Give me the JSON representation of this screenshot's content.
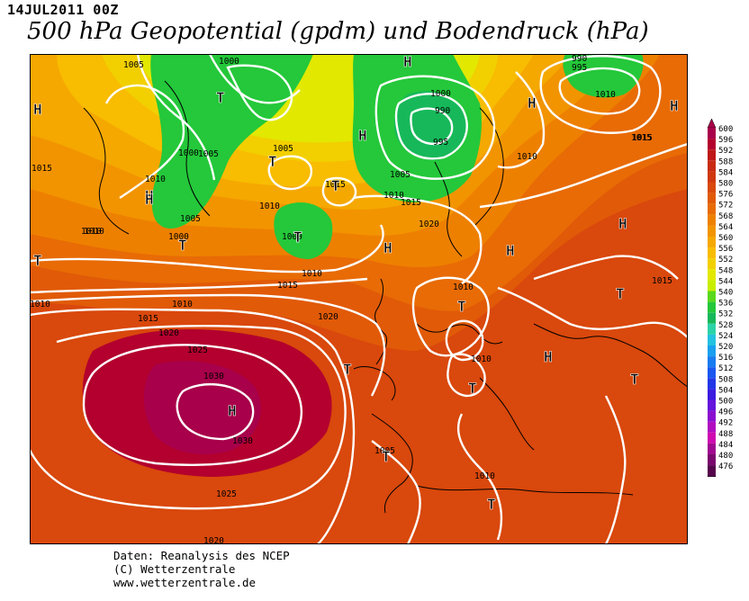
{
  "header": {
    "date": "14JUL2011 00Z",
    "title": "500 hPa Geopotential (gpdm) und Bodendruck (hPa)"
  },
  "credits": [
    "Daten: Reanalysis des NCEP",
    "(C) Wetterzentrale",
    "www.wetterzentrale.de"
  ],
  "legend": {
    "levels": [
      "600",
      "596",
      "592",
      "588",
      "584",
      "580",
      "576",
      "572",
      "568",
      "564",
      "560",
      "556",
      "552",
      "548",
      "544",
      "540",
      "536",
      "532",
      "528",
      "524",
      "520",
      "516",
      "512",
      "508",
      "504",
      "500",
      "496",
      "492",
      "488",
      "484",
      "480",
      "476"
    ],
    "colors": [
      "#a8004a",
      "#b3002e",
      "#bf1717",
      "#c92a12",
      "#d0380f",
      "#d9480c",
      "#e15a08",
      "#e86b05",
      "#ee8000",
      "#f29400",
      "#f5a800",
      "#f8bc00",
      "#f2d000",
      "#e2e800",
      "#c8ee00",
      "#5ad81c",
      "#24c83a",
      "#17b85a",
      "#2ad3a8",
      "#23c2e0",
      "#1aa0ee",
      "#187cf0",
      "#1a56f0",
      "#2236e6",
      "#3a1ce0",
      "#6412dc",
      "#8a0ed0",
      "#b00cc0",
      "#cf0ab0",
      "#a00890",
      "#7a066e",
      "#55044c"
    ]
  },
  "map": {
    "contour_labels": [
      "1005",
      "1000",
      "1000",
      "990",
      "995",
      "1000",
      "1005",
      "1015",
      "1005",
      "1005",
      "1010",
      "1010",
      "1015",
      "1010",
      "1005",
      "1000",
      "1015",
      "1010",
      "1010",
      "1000",
      "1010",
      "1010",
      "1015",
      "1010",
      "1020",
      "1010",
      "1015",
      "1025",
      "1020",
      "1030",
      "1030",
      "1025",
      "1020",
      "1010",
      "1005",
      "1015",
      "1010",
      "1015",
      "995",
      "990",
      "1010",
      "1010",
      "1015",
      "1020"
    ],
    "pressure_centers": [
      "H",
      "H",
      "H",
      "H",
      "H",
      "H",
      "H",
      "H",
      "H",
      "H",
      "H",
      "H",
      "T",
      "T",
      "T",
      "T",
      "T",
      "T",
      "T",
      "T",
      "T",
      "T",
      "T",
      "T",
      "T",
      "T"
    ]
  }
}
